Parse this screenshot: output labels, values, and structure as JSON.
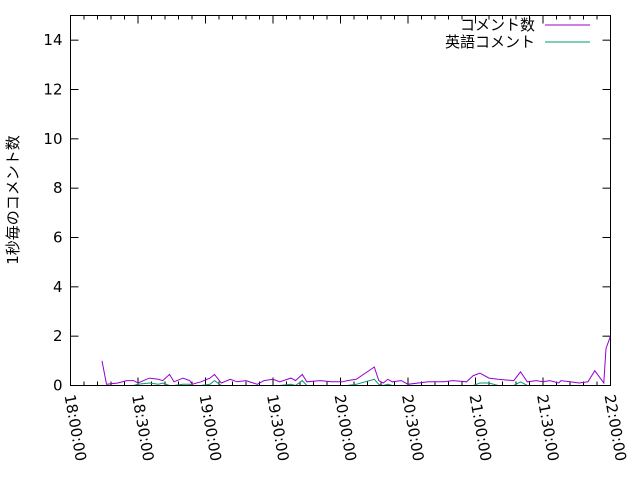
{
  "chart_data": {
    "type": "line",
    "title": "",
    "xlabel": "",
    "ylabel": "1秒毎のコメント数",
    "xlim": [
      "18:00:00",
      "22:00:00"
    ],
    "ylim": [
      0,
      15
    ],
    "x_ticks": [
      "18:00:00",
      "18:30:00",
      "19:00:00",
      "19:30:00",
      "20:00:00",
      "20:30:00",
      "21:00:00",
      "21:30:00",
      "22:00:00"
    ],
    "y_ticks": [
      "0",
      "2",
      "4",
      "6",
      "8",
      "10",
      "12",
      "14"
    ],
    "grid": false,
    "legend_position": "top-right",
    "x": [
      "18:14:00",
      "18:16:00",
      "18:21:00",
      "18:25:00",
      "18:28:00",
      "18:30:00",
      "18:35:00",
      "18:39:00",
      "18:41:00",
      "18:44:00",
      "18:46:00",
      "18:50:00",
      "18:53:00",
      "18:54:00",
      "18:58:00",
      "19:02:00",
      "19:04:00",
      "19:07:00",
      "19:11:00",
      "19:14:00",
      "19:18:00",
      "19:23:00",
      "19:26:00",
      "19:30:00",
      "19:33:00",
      "19:38:00",
      "19:40:00",
      "19:43:00",
      "19:45:00",
      "19:51:00",
      "19:56:00",
      "20:01:00",
      "20:03:00",
      "20:07:00",
      "20:15:00",
      "20:17:00",
      "20:19:00",
      "20:21:00",
      "20:23:00",
      "20:27:00",
      "20:30:00",
      "20:39:00",
      "20:46:00",
      "20:50:00",
      "20:56:00",
      "20:59:00",
      "21:02:00",
      "21:06:00",
      "21:10:00",
      "21:17:00",
      "21:20:00",
      "21:23:00",
      "21:27:00",
      "21:30:00",
      "21:33:00",
      "21:37:00",
      "21:38:00",
      "21:42:00",
      "21:46:00",
      "21:50:00",
      "21:53:00",
      "21:57:00",
      "21:58:00",
      "22:00:00"
    ],
    "series": [
      {
        "name": "コメント数",
        "color": "#9400d3",
        "values": [
          1.0,
          0.05,
          0.1,
          0.2,
          0.2,
          0.1,
          0.3,
          0.25,
          0.2,
          0.45,
          0.15,
          0.3,
          0.2,
          0.05,
          0.15,
          0.3,
          0.45,
          0.1,
          0.25,
          0.15,
          0.2,
          0.05,
          0.2,
          0.25,
          0.15,
          0.3,
          0.2,
          0.45,
          0.15,
          0.2,
          0.15,
          0.15,
          0.2,
          0.25,
          0.75,
          0.2,
          0.1,
          0.25,
          0.15,
          0.2,
          0.05,
          0.15,
          0.15,
          0.2,
          0.15,
          0.4,
          0.5,
          0.3,
          0.25,
          0.2,
          0.55,
          0.15,
          0.2,
          0.15,
          0.2,
          0.1,
          0.2,
          0.15,
          0.1,
          0.15,
          0.6,
          0.1,
          1.5,
          2.0
        ]
      },
      {
        "name": "英語コメント",
        "color": "#009e73",
        "values": [
          0,
          0,
          0,
          0,
          0,
          0.05,
          0.1,
          0.05,
          0.1,
          0,
          0,
          0.05,
          0.05,
          0,
          0,
          0.05,
          0.2,
          0,
          0,
          0,
          0,
          0,
          0,
          0,
          0,
          0.05,
          0,
          0.2,
          0,
          0,
          0,
          0,
          0,
          0.05,
          0.25,
          0.05,
          0,
          0.05,
          0,
          0,
          0,
          0,
          0,
          0,
          0,
          0,
          0.1,
          0.1,
          0,
          0,
          0.15,
          0,
          0,
          0,
          0,
          0,
          0,
          0,
          0,
          0,
          0,
          0,
          0,
          0
        ]
      }
    ]
  }
}
